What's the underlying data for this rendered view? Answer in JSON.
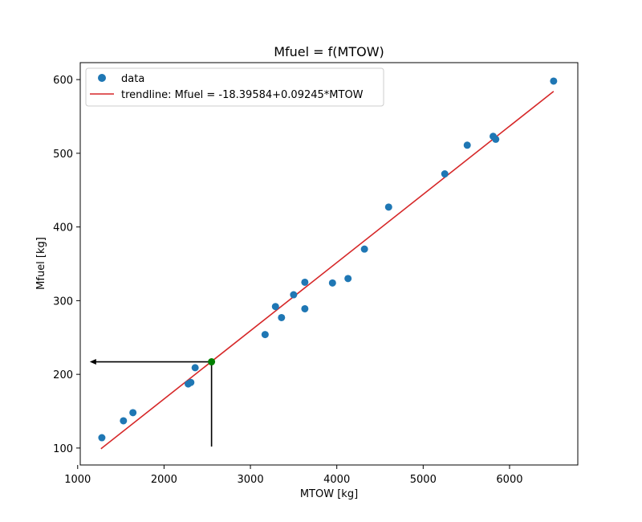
{
  "chart_data": {
    "type": "scatter",
    "title": "Mfuel = f(MTOW)",
    "xlabel": "MTOW [kg]",
    "ylabel": "Mfuel [kg]",
    "xlim": [
      1030,
      6790
    ],
    "ylim": [
      77,
      623
    ],
    "xticks": [
      1000,
      2000,
      3000,
      4000,
      5000,
      6000
    ],
    "yticks": [
      100,
      200,
      300,
      400,
      500,
      600
    ],
    "grid": false,
    "legend": {
      "position": "top-left",
      "entries": [
        {
          "label": "data",
          "marker": "circle",
          "color": "#1f77b4"
        },
        {
          "label": "trendline: Mfuel = -18.39584+0.09245*MTOW",
          "marker": "line",
          "color": "#d62728"
        }
      ]
    },
    "series": [
      {
        "name": "data",
        "color": "#1f77b4",
        "points": [
          [
            1280,
            114
          ],
          [
            1530,
            137
          ],
          [
            1640,
            148
          ],
          [
            2280,
            187
          ],
          [
            2310,
            189
          ],
          [
            2360,
            209
          ],
          [
            3170,
            254
          ],
          [
            3290,
            292
          ],
          [
            3360,
            277
          ],
          [
            3500,
            308
          ],
          [
            3630,
            325
          ],
          [
            3630,
            289
          ],
          [
            3950,
            324
          ],
          [
            4130,
            330
          ],
          [
            4320,
            370
          ],
          [
            4600,
            427
          ],
          [
            5250,
            472
          ],
          [
            5510,
            511
          ],
          [
            5810,
            523
          ],
          [
            5840,
            519
          ],
          [
            6510,
            598
          ]
        ]
      },
      {
        "name": "trendline: Mfuel = -18.39584+0.09245*MTOW",
        "color": "#d62728",
        "x": [
          1270,
          6510
        ],
        "y": [
          99,
          584
        ]
      }
    ],
    "annotation": {
      "point": [
        2550,
        217
      ],
      "point_color": "#008000",
      "vertical_from_y": 102,
      "arrow_to_x": 1140
    }
  }
}
